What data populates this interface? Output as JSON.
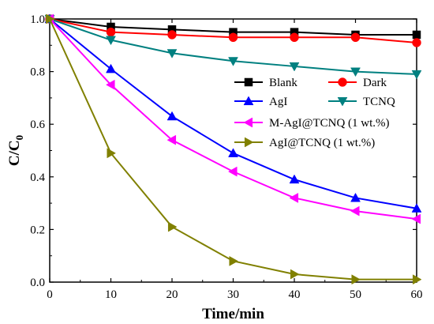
{
  "chart_data": {
    "type": "line",
    "title": "",
    "xlabel": "Time/min",
    "ylabel_main": "C/C",
    "ylabel_sub": "0",
    "xlim": [
      0,
      60
    ],
    "ylim": [
      0,
      1.0
    ],
    "xticks": [
      "0",
      "10",
      "20",
      "30",
      "40",
      "50",
      "60"
    ],
    "yticks": [
      "0.0",
      "0.2",
      "0.4",
      "0.6",
      "0.8",
      "1.0"
    ],
    "x": [
      0,
      10,
      20,
      30,
      40,
      50,
      60
    ],
    "legend_position": "center-right",
    "series": [
      {
        "name": "Blank",
        "color": "#000000",
        "marker": "square",
        "values": [
          1.0,
          0.97,
          0.96,
          0.95,
          0.95,
          0.94,
          0.94
        ]
      },
      {
        "name": "Dark",
        "color": "#ff0000",
        "marker": "circle",
        "values": [
          1.0,
          0.95,
          0.94,
          0.93,
          0.93,
          0.93,
          0.91
        ]
      },
      {
        "name": "AgI",
        "color": "#0000ff",
        "marker": "triangle-up",
        "values": [
          1.0,
          0.81,
          0.63,
          0.49,
          0.39,
          0.32,
          0.28
        ]
      },
      {
        "name": "TCNQ",
        "color": "#008080",
        "marker": "triangle-down",
        "values": [
          1.0,
          0.92,
          0.87,
          0.84,
          0.82,
          0.8,
          0.79
        ]
      },
      {
        "name": "M-AgI@TCNQ (1 wt.%)",
        "color": "#ff00ff",
        "marker": "triangle-left",
        "values": [
          1.0,
          0.75,
          0.54,
          0.42,
          0.32,
          0.27,
          0.24
        ]
      },
      {
        "name": "AgI@TCNQ (1 wt.%)",
        "color": "#808000",
        "marker": "triangle-right",
        "values": [
          1.0,
          0.49,
          0.21,
          0.08,
          0.03,
          0.01,
          0.01
        ]
      }
    ]
  }
}
